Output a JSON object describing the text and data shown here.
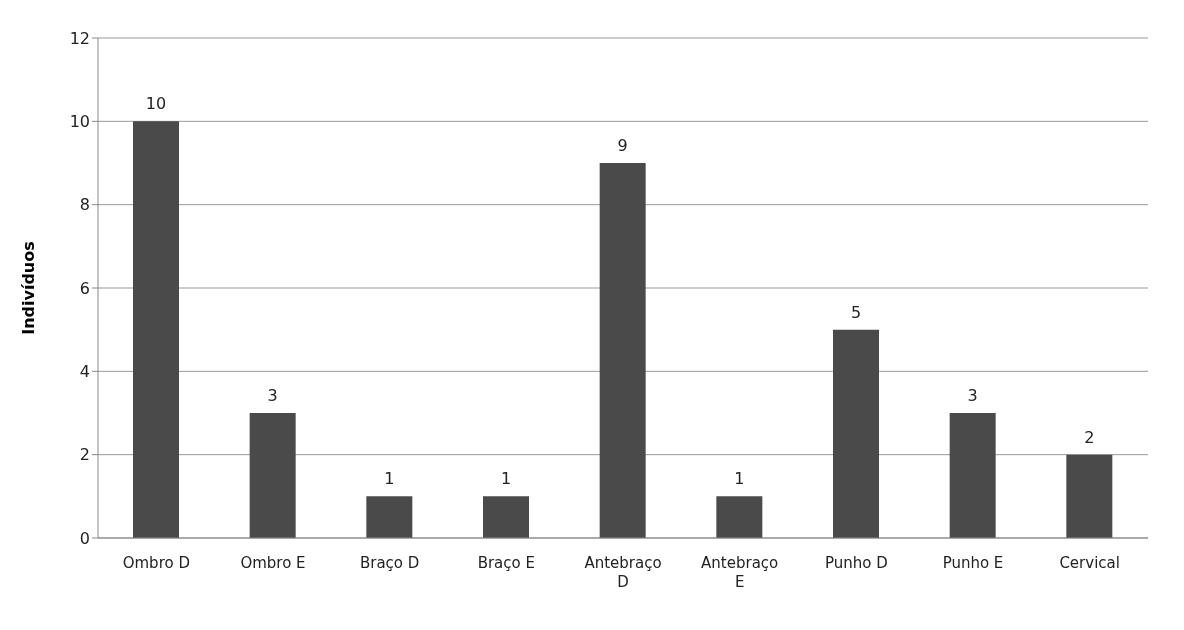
{
  "chart_data": {
    "type": "bar",
    "ylabel": "Indivíduos",
    "categories": [
      "Ombro D",
      "Ombro E",
      "Braço D",
      "Braço E",
      "Antebraço D",
      "Antebraço E",
      "Punho D",
      "Punho E",
      "Cervical"
    ],
    "values": [
      10,
      3,
      1,
      1,
      9,
      1,
      5,
      3,
      2
    ],
    "color": "#4a4a4a",
    "ylim": [
      0,
      12
    ],
    "yticks": [
      0,
      2,
      4,
      6,
      8,
      10,
      12
    ],
    "grid": "y",
    "data_labels": true
  }
}
